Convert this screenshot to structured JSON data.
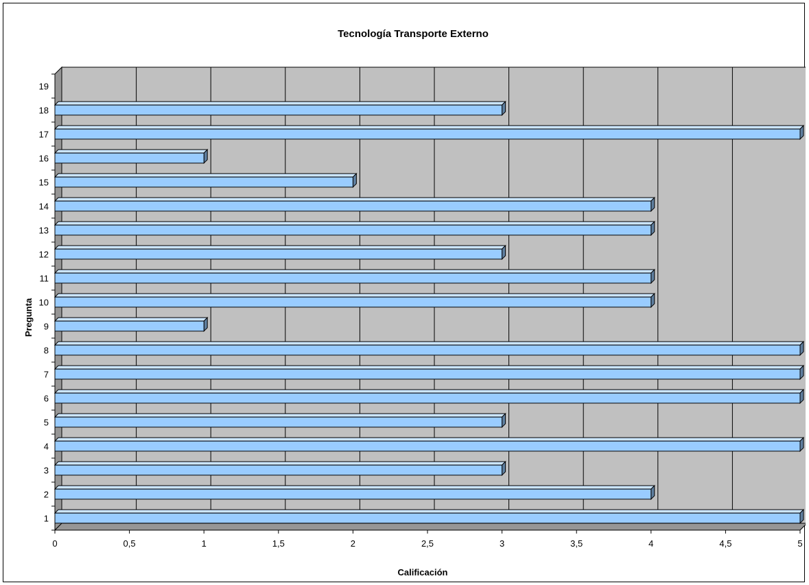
{
  "chart_data": {
    "type": "bar",
    "orientation": "horizontal",
    "title": "Tecnología  Transporte Externo",
    "xlabel": "Calificación",
    "ylabel": "Pregunta",
    "xlim": [
      0,
      5
    ],
    "x_ticks": [
      "0",
      "0,5",
      "1",
      "1,5",
      "2",
      "2,5",
      "3",
      "3,5",
      "4",
      "4,5",
      "5"
    ],
    "categories": [
      "1",
      "2",
      "3",
      "4",
      "5",
      "6",
      "7",
      "8",
      "9",
      "10",
      "11",
      "12",
      "13",
      "14",
      "15",
      "16",
      "17",
      "18",
      "19"
    ],
    "values": [
      5,
      4,
      3,
      5,
      3,
      5,
      5,
      5,
      1,
      4,
      4,
      3,
      4,
      4,
      2,
      1,
      5,
      3,
      null
    ],
    "grid": true,
    "legend": "none",
    "colors": {
      "bar_face": "#99ccff",
      "bar_top": "#cce6ff",
      "bar_side": "#5f7f9f",
      "plot_area": "#c0c0c0",
      "wall": "#969696",
      "gridline": "#000000"
    }
  }
}
